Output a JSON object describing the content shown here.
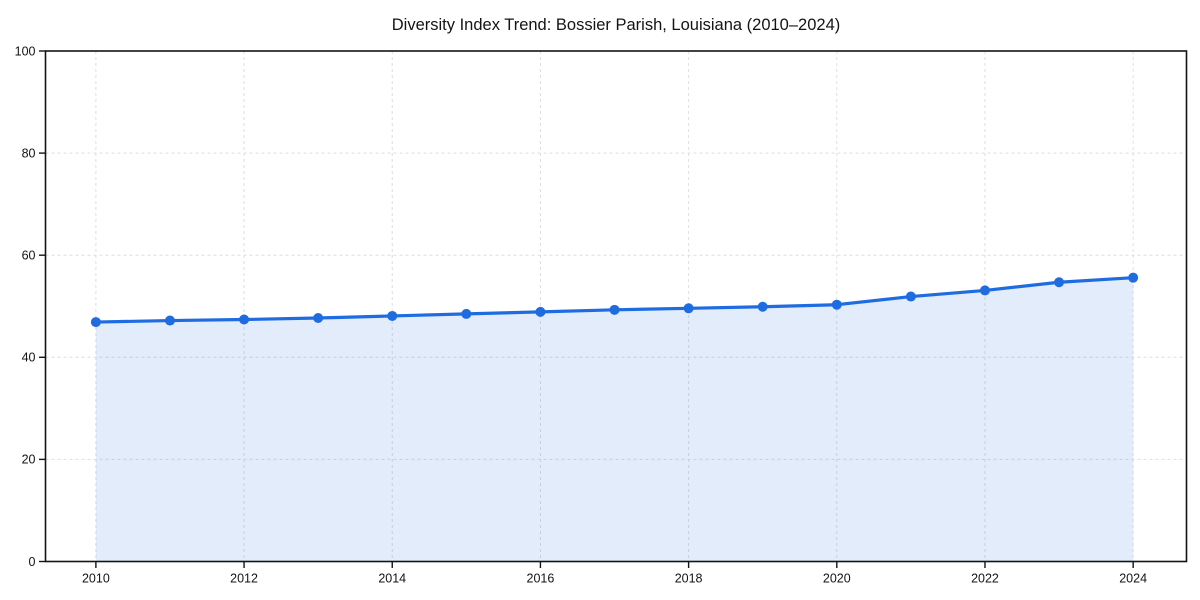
{
  "chart_data": {
    "type": "area",
    "title": "Diversity Index Trend: Bossier Parish, Louisiana (2010–2024)",
    "x": [
      2010,
      2011,
      2012,
      2013,
      2014,
      2015,
      2016,
      2017,
      2018,
      2019,
      2020,
      2021,
      2022,
      2023,
      2024
    ],
    "series": [
      {
        "name": "Diversity Index",
        "values": [
          46.9,
          47.2,
          47.4,
          47.7,
          48.1,
          48.5,
          48.9,
          49.3,
          49.6,
          49.9,
          50.3,
          51.9,
          53.1,
          54.7,
          55.6
        ]
      }
    ],
    "xlabel": "",
    "ylabel": "",
    "xlim": [
      2009.32,
      2024.72
    ],
    "ylim": [
      0,
      100
    ],
    "xticks": [
      2010,
      2012,
      2014,
      2016,
      2018,
      2020,
      2022,
      2024
    ],
    "yticks": [
      0,
      20,
      40,
      60,
      80,
      100
    ],
    "grid": true,
    "grid_style": "dashed",
    "legend": false,
    "marker": "circle",
    "colors": {
      "line": "#1f6ce0",
      "fill": "#1f6ce0",
      "fill_opacity": 0.13,
      "grid": "#dedede",
      "spine": "#141414",
      "tick": "#141414",
      "text": "#141414",
      "background": "#ffffff"
    }
  }
}
